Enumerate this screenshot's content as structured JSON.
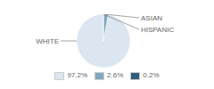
{
  "chart_data": {
    "type": "pie",
    "categories": [
      "WHITE",
      "ASIAN",
      "HISPANIC"
    ],
    "values": [
      97.2,
      2.6,
      0.2
    ],
    "value_labels": [
      "97.2%",
      "2.6%",
      "0.2%"
    ],
    "colors": [
      "#dce6f0",
      "#7fa8c0",
      "#2e5f7a"
    ],
    "legend": "bottom"
  }
}
